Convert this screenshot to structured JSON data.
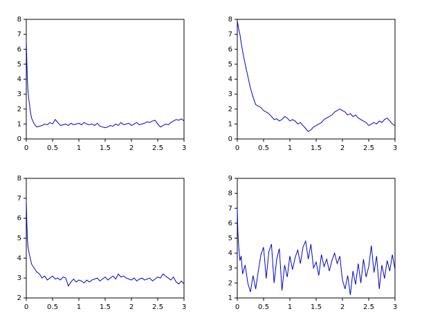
{
  "chart_data": [
    {
      "type": "line",
      "xlim": [
        0,
        3
      ],
      "ylim": [
        0,
        8
      ],
      "xticks": [
        0,
        0.5,
        1,
        1.5,
        2,
        2.5,
        3
      ],
      "yticks": [
        0,
        1,
        2,
        3,
        4,
        5,
        6,
        7,
        8
      ],
      "x": [
        0,
        0.01,
        0.02,
        0.03,
        0.05,
        0.075,
        0.1,
        0.15,
        0.2,
        0.25,
        0.3,
        0.35,
        0.4,
        0.45,
        0.5,
        0.55,
        0.6,
        0.65,
        0.7,
        0.75,
        0.8,
        0.85,
        0.9,
        0.95,
        1,
        1.05,
        1.1,
        1.15,
        1.2,
        1.25,
        1.3,
        1.35,
        1.4,
        1.45,
        1.5,
        1.55,
        1.6,
        1.65,
        1.7,
        1.75,
        1.8,
        1.85,
        1.9,
        1.95,
        2,
        2.05,
        2.1,
        2.15,
        2.2,
        2.25,
        2.3,
        2.35,
        2.4,
        2.45,
        2.5,
        2.55,
        2.6,
        2.65,
        2.7,
        2.75,
        2.8,
        2.85,
        2.9,
        2.95,
        3
      ],
      "series": [
        {
          "color": "#0000cc",
          "values": [
            6.6,
            5.2,
            4.0,
            3.3,
            2.6,
            1.9,
            1.4,
            1.0,
            0.8,
            0.85,
            0.9,
            1.0,
            0.95,
            1.1,
            1.0,
            1.3,
            1.1,
            0.9,
            0.95,
            1.0,
            0.9,
            1.05,
            0.95,
            1.0,
            1.05,
            0.95,
            1.1,
            1.0,
            0.95,
            1.0,
            0.9,
            1.05,
            0.85,
            0.8,
            0.75,
            0.8,
            0.9,
            0.85,
            1.0,
            0.9,
            1.1,
            0.95,
            1.0,
            1.05,
            0.9,
            1.0,
            1.1,
            0.95,
            1.0,
            1.05,
            1.15,
            1.1,
            1.2,
            1.25,
            1.0,
            0.8,
            0.9,
            1.0,
            0.95,
            1.1,
            1.2,
            1.3,
            1.25,
            1.35,
            1.2
          ]
        }
      ]
    },
    {
      "type": "line",
      "xlim": [
        0,
        3
      ],
      "ylim": [
        0,
        8
      ],
      "xticks": [
        0,
        0.5,
        1,
        1.5,
        2,
        2.5,
        3
      ],
      "yticks": [
        0,
        1,
        2,
        3,
        4,
        5,
        6,
        7,
        8
      ],
      "x": [
        0,
        0.01,
        0.02,
        0.03,
        0.05,
        0.075,
        0.1,
        0.15,
        0.2,
        0.25,
        0.3,
        0.35,
        0.4,
        0.45,
        0.5,
        0.55,
        0.6,
        0.65,
        0.7,
        0.75,
        0.8,
        0.85,
        0.9,
        0.95,
        1,
        1.05,
        1.1,
        1.15,
        1.2,
        1.25,
        1.3,
        1.35,
        1.4,
        1.45,
        1.5,
        1.55,
        1.6,
        1.65,
        1.7,
        1.75,
        1.8,
        1.85,
        1.9,
        1.95,
        2,
        2.05,
        2.1,
        2.15,
        2.2,
        2.25,
        2.3,
        2.35,
        2.4,
        2.45,
        2.5,
        2.55,
        2.6,
        2.65,
        2.7,
        2.75,
        2.8,
        2.85,
        2.9,
        2.95,
        3
      ],
      "series": [
        {
          "color": "#0000cc",
          "values": [
            7.9,
            7.7,
            7.5,
            7.3,
            7.0,
            6.4,
            5.9,
            5.0,
            4.2,
            3.4,
            2.8,
            2.3,
            2.2,
            2.1,
            1.9,
            1.8,
            1.7,
            1.5,
            1.3,
            1.35,
            1.2,
            1.3,
            1.5,
            1.4,
            1.2,
            1.3,
            1.2,
            1.0,
            1.1,
            0.9,
            0.7,
            0.5,
            0.6,
            0.8,
            0.9,
            1.0,
            1.1,
            1.3,
            1.4,
            1.5,
            1.6,
            1.8,
            1.9,
            2.0,
            1.9,
            1.8,
            1.6,
            1.7,
            1.5,
            1.6,
            1.4,
            1.3,
            1.2,
            1.1,
            0.9,
            1.0,
            1.1,
            1.0,
            1.2,
            1.1,
            1.3,
            1.4,
            1.2,
            1.0,
            0.9
          ]
        }
      ]
    },
    {
      "type": "line",
      "xlim": [
        0,
        3
      ],
      "ylim": [
        2,
        8
      ],
      "xticks": [
        0,
        0.5,
        1,
        1.5,
        2,
        2.5,
        3
      ],
      "yticks": [
        2,
        3,
        4,
        5,
        6,
        7,
        8
      ],
      "x": [
        0,
        0.01,
        0.02,
        0.03,
        0.05,
        0.075,
        0.1,
        0.15,
        0.2,
        0.25,
        0.3,
        0.35,
        0.4,
        0.45,
        0.5,
        0.55,
        0.6,
        0.65,
        0.7,
        0.75,
        0.8,
        0.85,
        0.9,
        0.95,
        1,
        1.05,
        1.1,
        1.15,
        1.2,
        1.25,
        1.3,
        1.35,
        1.4,
        1.45,
        1.5,
        1.55,
        1.6,
        1.65,
        1.7,
        1.75,
        1.8,
        1.85,
        1.9,
        1.95,
        2,
        2.05,
        2.1,
        2.15,
        2.2,
        2.25,
        2.3,
        2.35,
        2.4,
        2.45,
        2.5,
        2.55,
        2.6,
        2.65,
        2.7,
        2.75,
        2.8,
        2.85,
        2.9,
        2.95,
        3
      ],
      "series": [
        {
          "color": "#0000cc",
          "values": [
            6.9,
            5.8,
            5.0,
            4.6,
            4.3,
            4.0,
            3.7,
            3.5,
            3.3,
            3.2,
            3.0,
            3.1,
            2.9,
            3.0,
            3.1,
            2.95,
            3.0,
            2.9,
            3.05,
            3.0,
            2.6,
            2.8,
            2.95,
            2.8,
            2.9,
            2.85,
            2.75,
            2.9,
            2.8,
            2.9,
            2.95,
            3.0,
            2.85,
            2.95,
            3.05,
            2.9,
            3.0,
            3.1,
            2.95,
            3.2,
            3.05,
            3.1,
            3.0,
            2.95,
            2.9,
            3.0,
            2.85,
            2.95,
            3.0,
            2.9,
            2.95,
            3.0,
            2.85,
            2.95,
            3.05,
            3.0,
            3.2,
            3.1,
            3.0,
            2.9,
            3.05,
            2.8,
            2.7,
            2.85,
            2.7
          ]
        }
      ]
    },
    {
      "type": "line",
      "xlim": [
        0,
        3
      ],
      "ylim": [
        1,
        9
      ],
      "xticks": [
        0,
        0.5,
        1,
        1.5,
        2,
        2.5,
        3
      ],
      "yticks": [
        1,
        2,
        3,
        4,
        5,
        6,
        7,
        8,
        9
      ],
      "x": [
        0,
        0.01,
        0.02,
        0.03,
        0.05,
        0.075,
        0.1,
        0.15,
        0.2,
        0.25,
        0.3,
        0.35,
        0.4,
        0.45,
        0.5,
        0.55,
        0.6,
        0.65,
        0.7,
        0.75,
        0.8,
        0.85,
        0.9,
        0.95,
        1,
        1.05,
        1.1,
        1.15,
        1.2,
        1.25,
        1.3,
        1.35,
        1.4,
        1.45,
        1.5,
        1.55,
        1.6,
        1.65,
        1.7,
        1.75,
        1.8,
        1.85,
        1.9,
        1.95,
        2,
        2.05,
        2.1,
        2.15,
        2.2,
        2.25,
        2.3,
        2.35,
        2.4,
        2.45,
        2.5,
        2.55,
        2.6,
        2.65,
        2.7,
        2.75,
        2.8,
        2.85,
        2.9,
        2.95,
        3
      ],
      "series": [
        {
          "color": "#0000cc",
          "values": [
            7.0,
            5.5,
            4.8,
            4.3,
            3.5,
            3.8,
            2.6,
            3.2,
            2.0,
            1.4,
            2.5,
            1.6,
            2.8,
            3.9,
            4.4,
            2.3,
            4.1,
            4.6,
            2.0,
            3.6,
            4.3,
            1.5,
            3.2,
            2.4,
            3.8,
            2.9,
            3.7,
            4.2,
            3.3,
            4.4,
            4.8,
            3.6,
            4.6,
            3.0,
            3.4,
            2.5,
            3.9,
            3.1,
            3.6,
            2.8,
            3.5,
            4.0,
            3.3,
            3.8,
            2.2,
            1.6,
            2.5,
            1.2,
            2.8,
            1.9,
            3.3,
            2.0,
            3.6,
            2.4,
            3.1,
            4.5,
            2.7,
            3.8,
            1.6,
            3.2,
            2.3,
            3.5,
            2.8,
            3.9,
            2.9
          ]
        }
      ]
    }
  ]
}
